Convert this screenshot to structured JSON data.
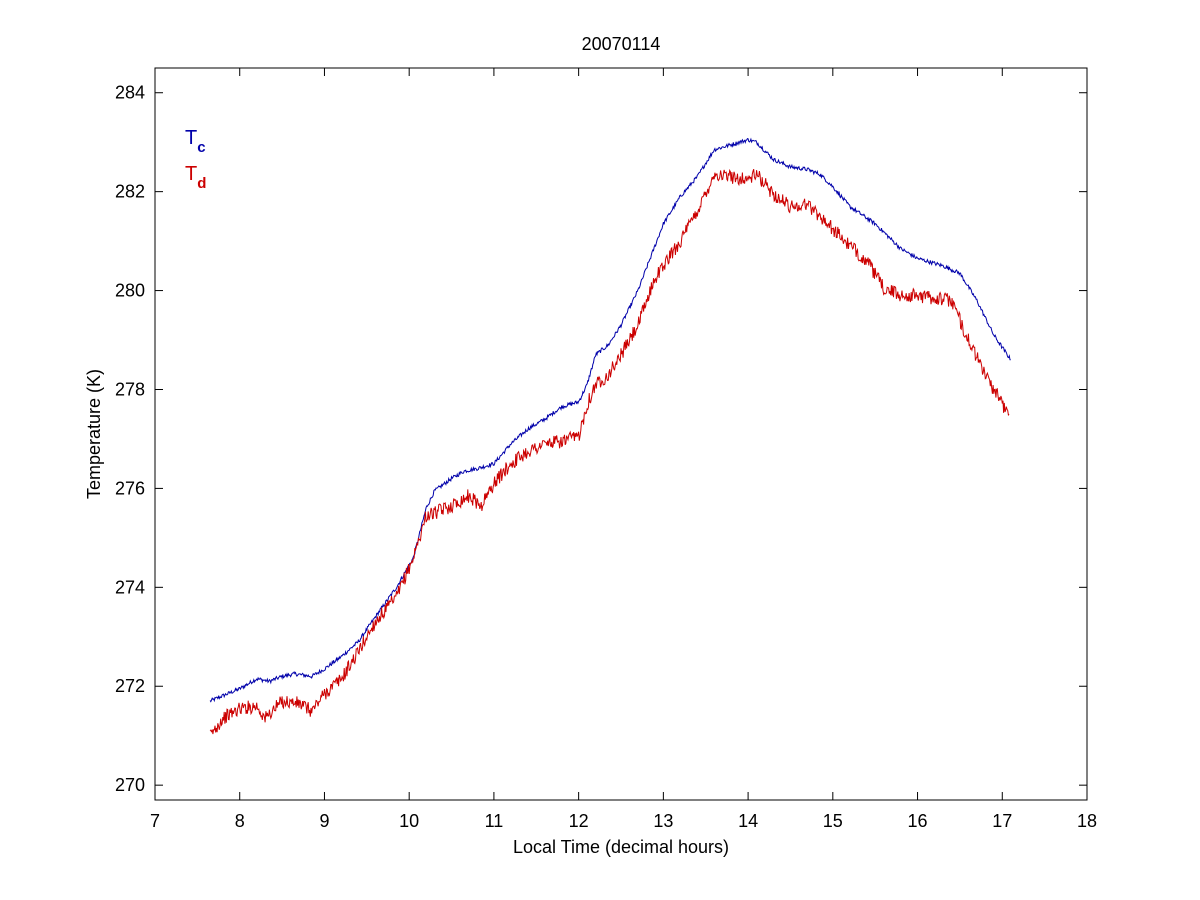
{
  "chart_data": {
    "type": "line",
    "title": "20070114",
    "xlabel": "Local Time (decimal hours)",
    "ylabel": "Temperature (K)",
    "xlim": [
      7,
      18
    ],
    "ylim": [
      269.7,
      284.5
    ],
    "xticks": [
      "7",
      "8",
      "9",
      "10",
      "11",
      "12",
      "13",
      "14",
      "15",
      "16",
      "17",
      "18"
    ],
    "yticks": [
      "270",
      "272",
      "274",
      "276",
      "278",
      "280",
      "282",
      "284"
    ],
    "grid": false,
    "legend_position": "top-left",
    "legend": [
      {
        "main": "T",
        "sub": "c",
        "color": "#0000aa"
      },
      {
        "main": "T",
        "sub": "d",
        "color": "#cc0000"
      }
    ],
    "series": [
      {
        "color": "#0000aa",
        "noise": 0.04,
        "x": [
          7.65,
          8.0,
          8.2,
          8.35,
          8.5,
          8.65,
          8.85,
          9.0,
          9.2,
          9.4,
          9.6,
          9.85,
          10.05,
          10.2,
          10.3,
          10.5,
          10.65,
          10.8,
          11.0,
          11.2,
          11.4,
          11.6,
          11.8,
          12.0,
          12.1,
          12.2,
          12.35,
          12.5,
          12.7,
          12.9,
          13.0,
          13.2,
          13.4,
          13.6,
          13.8,
          14.0,
          14.1,
          14.3,
          14.5,
          14.7,
          14.85,
          15.0,
          15.2,
          15.5,
          15.8,
          16.0,
          16.3,
          16.5,
          16.7,
          16.9,
          17.1
        ],
        "y": [
          271.7,
          271.95,
          272.15,
          272.1,
          272.2,
          272.25,
          272.2,
          272.35,
          272.6,
          272.9,
          273.4,
          274.0,
          274.6,
          275.6,
          275.95,
          276.2,
          276.35,
          276.4,
          276.5,
          276.9,
          277.2,
          277.4,
          277.65,
          277.75,
          278.1,
          278.7,
          278.9,
          279.3,
          280.0,
          280.9,
          281.35,
          281.9,
          282.3,
          282.85,
          282.95,
          283.05,
          283.0,
          282.65,
          282.5,
          282.45,
          282.35,
          282.1,
          281.7,
          281.35,
          280.85,
          280.65,
          280.5,
          280.35,
          279.8,
          279.1,
          278.6
        ]
      },
      {
        "color": "#cc0000",
        "noise": 0.14,
        "x": [
          7.65,
          7.8,
          8.0,
          8.2,
          8.3,
          8.5,
          8.7,
          8.85,
          9.0,
          9.2,
          9.4,
          9.6,
          9.85,
          10.05,
          10.2,
          10.3,
          10.5,
          10.7,
          10.85,
          11.0,
          11.2,
          11.4,
          11.6,
          11.8,
          12.0,
          12.1,
          12.2,
          12.35,
          12.5,
          12.7,
          12.9,
          13.0,
          13.2,
          13.4,
          13.6,
          13.8,
          14.0,
          14.1,
          14.3,
          14.5,
          14.7,
          14.85,
          15.0,
          15.2,
          15.4,
          15.6,
          15.8,
          16.0,
          16.2,
          16.4,
          16.6,
          16.8,
          17.0,
          17.08
        ],
        "y": [
          271.0,
          271.35,
          271.55,
          271.6,
          271.35,
          271.7,
          271.65,
          271.5,
          271.85,
          272.15,
          272.7,
          273.3,
          273.8,
          274.6,
          275.45,
          275.5,
          275.65,
          275.85,
          275.65,
          276.1,
          276.5,
          276.75,
          276.9,
          276.95,
          277.05,
          277.7,
          278.1,
          278.3,
          278.7,
          279.3,
          280.25,
          280.5,
          281.0,
          281.6,
          282.35,
          282.3,
          282.25,
          282.35,
          281.95,
          281.7,
          281.75,
          281.5,
          281.25,
          280.9,
          280.6,
          280.05,
          279.9,
          279.9,
          279.85,
          279.8,
          279.0,
          278.3,
          277.7,
          277.5
        ]
      }
    ]
  }
}
